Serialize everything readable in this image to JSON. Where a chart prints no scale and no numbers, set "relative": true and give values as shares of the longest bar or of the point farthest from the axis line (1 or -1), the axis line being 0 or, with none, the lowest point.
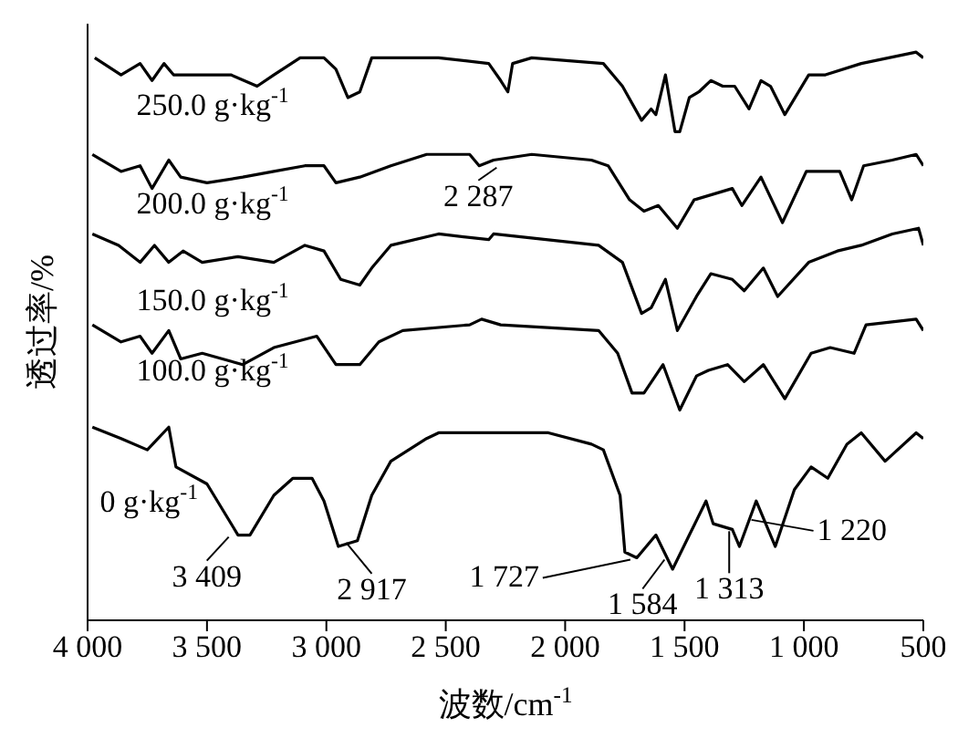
{
  "chart_data": {
    "type": "line",
    "relative": true,
    "xlabel": "波数/cm$^{-1}$",
    "ylabel": "透过率/%",
    "xlim": [
      4000,
      500
    ],
    "xticks": [
      {
        "value": 4000,
        "label": "4 000"
      },
      {
        "value": 3500,
        "label": "3 500"
      },
      {
        "value": 3000,
        "label": "3 000"
      },
      {
        "value": 2500,
        "label": "2 500"
      },
      {
        "value": 2000,
        "label": "2 000"
      },
      {
        "value": 1500,
        "label": "1 500"
      },
      {
        "value": 1000,
        "label": "1 000"
      },
      500
    ],
    "tick_labels": "x",
    "grid": false,
    "legend": false,
    "marker": "none",
    "line_style": "solid",
    "series": [
      {
        "name": "250.0 g·kg$^{-1}$",
        "color": "#000000",
        "x": [
          3970,
          3860,
          3780,
          3730,
          3680,
          3640,
          3550,
          3400,
          3290,
          3220,
          3110,
          3010,
          2960,
          2910,
          2860,
          2810,
          2710,
          2530,
          2320,
          2270,
          2240,
          2220,
          2140,
          1840,
          1760,
          1680,
          1640,
          1620,
          1580,
          1540,
          1520,
          1480,
          1440,
          1390,
          1340,
          1290,
          1230,
          1180,
          1140,
          1080,
          980,
          910,
          760,
          530,
          500
        ],
        "values": [
          0.99,
          0.96,
          0.98,
          0.95,
          0.98,
          0.96,
          0.96,
          0.96,
          0.94,
          0.96,
          0.99,
          0.99,
          0.97,
          0.92,
          0.93,
          0.99,
          0.99,
          0.99,
          0.98,
          0.95,
          0.93,
          0.98,
          0.99,
          0.98,
          0.94,
          0.88,
          0.9,
          0.89,
          0.96,
          0.86,
          0.86,
          0.92,
          0.93,
          0.95,
          0.94,
          0.94,
          0.9,
          0.95,
          0.94,
          0.89,
          0.96,
          0.96,
          0.98,
          1,
          0.99
        ]
      },
      {
        "name": "200.0 g·kg$^{-1}$",
        "color": "#000000",
        "x": [
          3980,
          3860,
          3780,
          3730,
          3660,
          3610,
          3500,
          3350,
          3220,
          3090,
          3010,
          2960,
          2860,
          2730,
          2580,
          2400,
          2360,
          2300,
          2140,
          1890,
          1820,
          1730,
          1670,
          1610,
          1530,
          1460,
          1380,
          1300,
          1260,
          1180,
          1090,
          990,
          900,
          850,
          800,
          750,
          630,
          530,
          500
        ],
        "values": [
          0.82,
          0.79,
          0.8,
          0.76,
          0.81,
          0.78,
          0.77,
          0.78,
          0.79,
          0.8,
          0.8,
          0.77,
          0.78,
          0.8,
          0.82,
          0.82,
          0.8,
          0.81,
          0.82,
          0.81,
          0.8,
          0.74,
          0.72,
          0.73,
          0.69,
          0.74,
          0.75,
          0.76,
          0.73,
          0.78,
          0.7,
          0.79,
          0.79,
          0.79,
          0.74,
          0.8,
          0.81,
          0.82,
          0.8
        ]
      },
      {
        "name": "150.0 g·kg$^{-1}$",
        "color": "#000000",
        "x": [
          3980,
          3870,
          3780,
          3720,
          3660,
          3600,
          3520,
          3370,
          3220,
          3090,
          3010,
          2940,
          2860,
          2810,
          2730,
          2530,
          2320,
          2300,
          1860,
          1760,
          1680,
          1640,
          1580,
          1530,
          1450,
          1390,
          1300,
          1250,
          1170,
          1110,
          980,
          860,
          760,
          630,
          520,
          500
        ],
        "values": [
          0.68,
          0.66,
          0.63,
          0.66,
          0.63,
          0.65,
          0.63,
          0.64,
          0.63,
          0.66,
          0.65,
          0.6,
          0.59,
          0.62,
          0.66,
          0.68,
          0.67,
          0.68,
          0.66,
          0.63,
          0.54,
          0.55,
          0.6,
          0.51,
          0.57,
          0.61,
          0.6,
          0.58,
          0.62,
          0.57,
          0.63,
          0.65,
          0.66,
          0.68,
          0.69,
          0.66
        ]
      },
      {
        "name": "100.0 g·kg$^{-1}$",
        "color": "#000000",
        "x": [
          3980,
          3860,
          3780,
          3730,
          3660,
          3610,
          3520,
          3350,
          3220,
          3040,
          2960,
          2860,
          2780,
          2680,
          2400,
          2350,
          2270,
          1860,
          1780,
          1720,
          1670,
          1590,
          1520,
          1450,
          1400,
          1320,
          1250,
          1170,
          1080,
          970,
          890,
          790,
          740,
          530,
          500
        ],
        "values": [
          0.52,
          0.49,
          0.5,
          0.47,
          0.51,
          0.46,
          0.47,
          0.45,
          0.48,
          0.5,
          0.45,
          0.45,
          0.49,
          0.51,
          0.52,
          0.53,
          0.52,
          0.51,
          0.47,
          0.4,
          0.4,
          0.45,
          0.37,
          0.43,
          0.44,
          0.45,
          0.42,
          0.45,
          0.39,
          0.47,
          0.48,
          0.47,
          0.52,
          0.53,
          0.51
        ]
      },
      {
        "name": "0 g·kg$^{-1}$",
        "color": "#000000",
        "x": [
          3980,
          3860,
          3750,
          3660,
          3630,
          3500,
          3370,
          3320,
          3220,
          3140,
          3060,
          3010,
          2950,
          2870,
          2810,
          2730,
          2580,
          2530,
          2270,
          2070,
          1890,
          1840,
          1770,
          1750,
          1700,
          1620,
          1550,
          1480,
          1410,
          1380,
          1300,
          1270,
          1200,
          1120,
          1040,
          970,
          900,
          820,
          760,
          660,
          530,
          500
        ],
        "values": [
          0.34,
          0.32,
          0.3,
          0.34,
          0.27,
          0.24,
          0.15,
          0.15,
          0.22,
          0.25,
          0.25,
          0.21,
          0.13,
          0.14,
          0.22,
          0.28,
          0.32,
          0.33,
          0.33,
          0.33,
          0.31,
          0.3,
          0.22,
          0.12,
          0.11,
          0.15,
          0.09,
          0.15,
          0.21,
          0.17,
          0.16,
          0.13,
          0.21,
          0.13,
          0.23,
          0.27,
          0.25,
          0.31,
          0.33,
          0.28,
          0.33,
          0.32
        ]
      }
    ],
    "annotations": [
      {
        "text": "3 409",
        "x": 3409,
        "y": 0.15
      },
      {
        "text": "2 917",
        "x": 2917,
        "y": 0.14
      },
      {
        "text": "2 287",
        "x": 2287,
        "y": 0.8
      },
      {
        "text": "1 727",
        "x": 1727,
        "y": 0.11
      },
      {
        "text": "1 584",
        "x": 1584,
        "y": 0.11
      },
      {
        "text": "1 313",
        "x": 1313,
        "y": 0.16
      },
      {
        "text": "1 220",
        "x": 1220,
        "y": 0.18
      }
    ]
  }
}
